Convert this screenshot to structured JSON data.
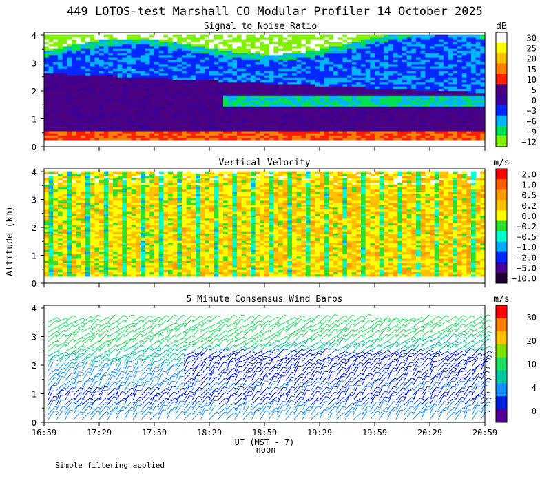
{
  "title": "449 LOTOS-test Marshall CO Modular Profiler 14 October 2025",
  "ylabel": "Altitude (km)",
  "xlabel": "UT (MST - 7)",
  "noon_label": "noon",
  "footnote": "Simple filtering applied",
  "x_ticks": [
    "16:59",
    "17:29",
    "17:59",
    "18:29",
    "18:59",
    "19:29",
    "19:59",
    "20:29",
    "20:59"
  ],
  "y_ticks": [
    "0",
    "1",
    "2",
    "3",
    "4"
  ],
  "chart_data": [
    {
      "type": "heatmap",
      "title": "Signal to Noise Ratio",
      "unit": "dB",
      "ylim": [
        0,
        4
      ],
      "x_range": [
        "16:59",
        "20:59"
      ],
      "colorbar": {
        "labels": [
          "30",
          "25",
          "20",
          "15",
          "10",
          "5",
          "0",
          "−3",
          "−6",
          "−9",
          "−12"
        ],
        "colors": [
          "#ffffff",
          "#ffff00",
          "#ffc000",
          "#ff8000",
          "#ff2000",
          "#4b0082",
          "#3c0096",
          "#0028ff",
          "#00b4ff",
          "#00e050",
          "#80f000"
        ]
      }
    },
    {
      "type": "heatmap",
      "title": "Vertical Velocity",
      "unit": "m/s",
      "ylim": [
        0,
        4
      ],
      "x_range": [
        "16:59",
        "20:59"
      ],
      "colorbar": {
        "labels": [
          "2.0",
          "1.0",
          "0.5",
          "0.2",
          "0.0",
          "−0.2",
          "−0.5",
          "−1.0",
          "−2.0",
          "−5.0",
          "−10.0"
        ],
        "colors": [
          "#ff0000",
          "#ff6000",
          "#ff9a00",
          "#ffc000",
          "#ffff00",
          "#30e030",
          "#00ffd0",
          "#00a8ff",
          "#0028ff",
          "#4b0096",
          "#200030"
        ]
      }
    },
    {
      "type": "scatter",
      "title": "5 Minute Consensus Wind Barbs",
      "unit": "m/s",
      "ylim": [
        0,
        4
      ],
      "x_range": [
        "16:59",
        "20:59"
      ],
      "colorbar": {
        "labels": [
          "30",
          "20",
          "10",
          "4",
          "0"
        ],
        "colors": [
          "#ff0000",
          "#ff7f00",
          "#ffc000",
          "#80e000",
          "#20e060",
          "#00c8a0",
          "#1890ff",
          "#0020e0",
          "#500090"
        ]
      }
    }
  ]
}
